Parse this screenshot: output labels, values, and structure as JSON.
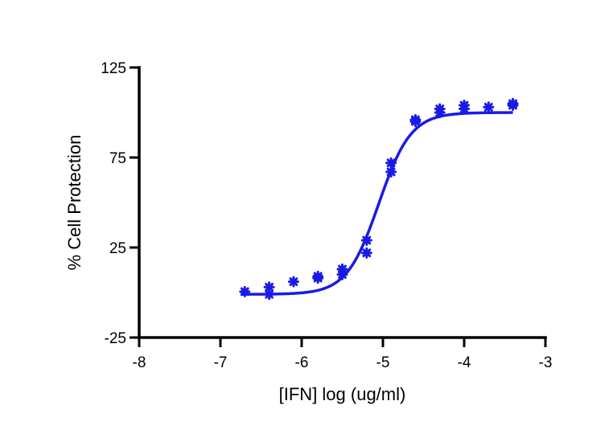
{
  "chart_data": {
    "type": "scatter",
    "title": "",
    "xlabel": "[IFN] log (ug/ml)",
    "ylabel": "% Cell Protection",
    "xlim": [
      -8,
      -3
    ],
    "ylim": [
      -25,
      125
    ],
    "xticks": [
      -8,
      -7,
      -6,
      -5,
      -4,
      -3
    ],
    "yticks": [
      -25,
      25,
      75,
      125
    ],
    "grid": false,
    "legend": "none",
    "color": "#1a1ae6",
    "series": [
      {
        "name": "",
        "points": [
          {
            "x": -6.7,
            "y": 0.5
          },
          {
            "x": -6.4,
            "y": 3
          },
          {
            "x": -6.4,
            "y": -1
          },
          {
            "x": -6.1,
            "y": 6
          },
          {
            "x": -5.8,
            "y": 9
          },
          {
            "x": -5.8,
            "y": 8
          },
          {
            "x": -5.5,
            "y": 13
          },
          {
            "x": -5.5,
            "y": 10
          },
          {
            "x": -5.2,
            "y": 29
          },
          {
            "x": -5.2,
            "y": 22
          },
          {
            "x": -4.9,
            "y": 72
          },
          {
            "x": -4.9,
            "y": 67
          },
          {
            "x": -4.6,
            "y": 96
          },
          {
            "x": -4.6,
            "y": 95
          },
          {
            "x": -4.3,
            "y": 102
          },
          {
            "x": -4.3,
            "y": 100
          },
          {
            "x": -4.0,
            "y": 104
          },
          {
            "x": -4.0,
            "y": 102
          },
          {
            "x": -3.7,
            "y": 103
          },
          {
            "x": -3.4,
            "y": 105
          },
          {
            "x": -3.4,
            "y": 104
          }
        ],
        "fit": {
          "model": "sigmoidal dose-response",
          "bottom": -1,
          "top": 100,
          "logEC50": -5.05,
          "hill": 2.2,
          "x_range": [
            -6.75,
            -3.4
          ]
        }
      }
    ]
  }
}
